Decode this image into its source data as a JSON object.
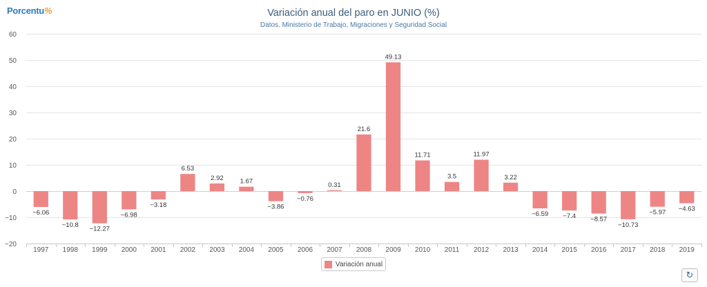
{
  "header": {
    "logo_text": "Porcentu",
    "logo_mark": "%",
    "refresh_icon": "refresh-icon"
  },
  "legend": {
    "label": "Variación anual",
    "color": "#ee8585"
  },
  "chart_data": {
    "type": "bar",
    "title": "Variación anual del paro en JUNIO (%)",
    "subtitle": "Datos. Ministerio de Trabajo, Migraciones y Seguridad Social",
    "xlabel": "",
    "ylabel": "",
    "ylim": [
      -20,
      60
    ],
    "yticks": [
      60,
      50,
      40,
      30,
      20,
      10,
      0,
      -10,
      -20
    ],
    "grid": true,
    "legend_position": "bottom-center",
    "bar_color": "#ee8585",
    "categories": [
      "1997",
      "1998",
      "1999",
      "2000",
      "2001",
      "2002",
      "2003",
      "2004",
      "2005",
      "2006",
      "2007",
      "2008",
      "2009",
      "2010",
      "2011",
      "2012",
      "2013",
      "2014",
      "2015",
      "2016",
      "2017",
      "2018",
      "2019"
    ],
    "series": [
      {
        "name": "Variación anual",
        "values": [
          -6.06,
          -10.8,
          -12.27,
          -6.98,
          -3.18,
          6.53,
          2.92,
          1.67,
          -3.86,
          -0.76,
          0.31,
          21.6,
          49.13,
          11.71,
          3.5,
          11.97,
          3.22,
          -6.59,
          -7.4,
          -8.57,
          -10.73,
          -5.97,
          -4.63
        ],
        "labels": [
          "−6.06",
          "−10.8",
          "−12.27",
          "−6.98",
          "−3.18",
          "6.53",
          "2.92",
          "1.67",
          "−3.86",
          "−0.76",
          "0.31",
          "21.6",
          "49.13",
          "11.71",
          "3.5",
          "11.97",
          "3.22",
          "−6.59",
          "−7.4",
          "−8.57",
          "−10.73",
          "−5.97",
          "−4.63"
        ]
      }
    ]
  }
}
